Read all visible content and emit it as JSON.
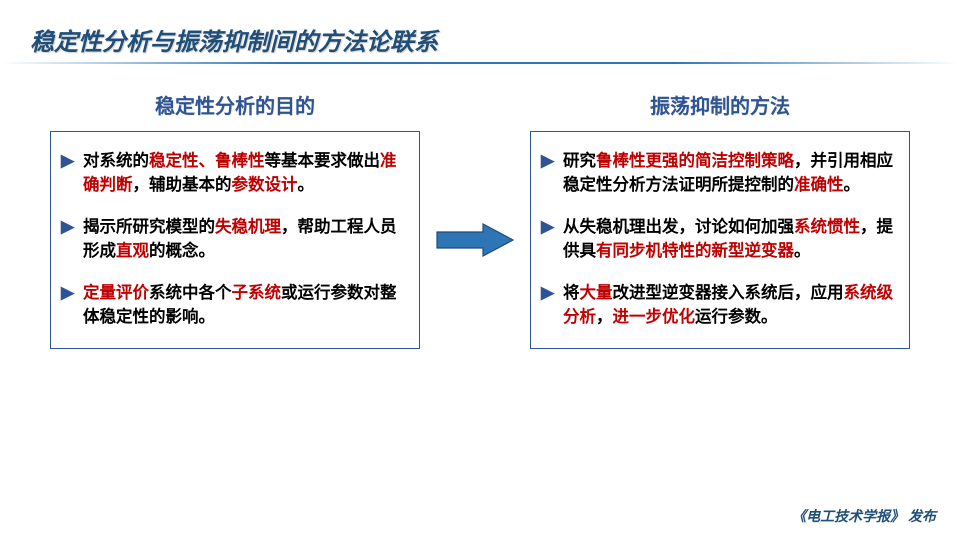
{
  "slide": {
    "title": "稳定性分析与振荡抑制间的方法论联系",
    "footer_journal": "《电工技术学报》",
    "footer_suffix": "发布"
  },
  "left": {
    "heading": "稳定性分析的目的",
    "items": [
      {
        "segments": [
          {
            "t": "对系统的"
          },
          {
            "t": "稳定性、鲁棒性",
            "hl": true
          },
          {
            "t": "等基本要求做出"
          },
          {
            "t": "准确判断",
            "hl": true
          },
          {
            "t": "，辅助基本的"
          },
          {
            "t": "参数设计",
            "hl": true
          },
          {
            "t": "。"
          }
        ]
      },
      {
        "segments": [
          {
            "t": "揭示所研究模型的"
          },
          {
            "t": "失稳机理",
            "hl": true
          },
          {
            "t": "，帮助工程人员形成"
          },
          {
            "t": "直观",
            "hl": true
          },
          {
            "t": "的概念。"
          }
        ]
      },
      {
        "segments": [
          {
            "t": "定量评价",
            "hl": true
          },
          {
            "t": "系统中各个"
          },
          {
            "t": "子系统",
            "hl": true
          },
          {
            "t": "或运行参数对整体稳定性的影响。"
          }
        ]
      }
    ]
  },
  "right": {
    "heading": "振荡抑制的方法",
    "items": [
      {
        "segments": [
          {
            "t": "研究"
          },
          {
            "t": "鲁棒性更强的简洁控制策略",
            "hl": true
          },
          {
            "t": "，并引用相应稳定性分析方法证明所提控制的"
          },
          {
            "t": "准确性",
            "hl": true
          },
          {
            "t": "。"
          }
        ]
      },
      {
        "segments": [
          {
            "t": "从失稳机理出发，讨论如何加强"
          },
          {
            "t": "系统惯性",
            "hl": true
          },
          {
            "t": "，提供具"
          },
          {
            "t": "有同步机特性的新型逆变器",
            "hl": true
          },
          {
            "t": "。"
          }
        ]
      },
      {
        "segments": [
          {
            "t": "将"
          },
          {
            "t": "大量",
            "hl": true
          },
          {
            "t": "改进型逆变器接入系统后，应用"
          },
          {
            "t": "系统级分析",
            "hl": true
          },
          {
            "t": "，"
          },
          {
            "t": "进一步优化",
            "hl": true
          },
          {
            "t": "运行参数。"
          }
        ]
      }
    ]
  },
  "colors": {
    "heading_blue": "#1f4e79",
    "box_border": "#2e5496",
    "bullet_blue": "#2e5496",
    "highlight_red": "#c00000",
    "arrow_fill": "#2e75b6",
    "arrow_stroke": "#1f4e79"
  }
}
